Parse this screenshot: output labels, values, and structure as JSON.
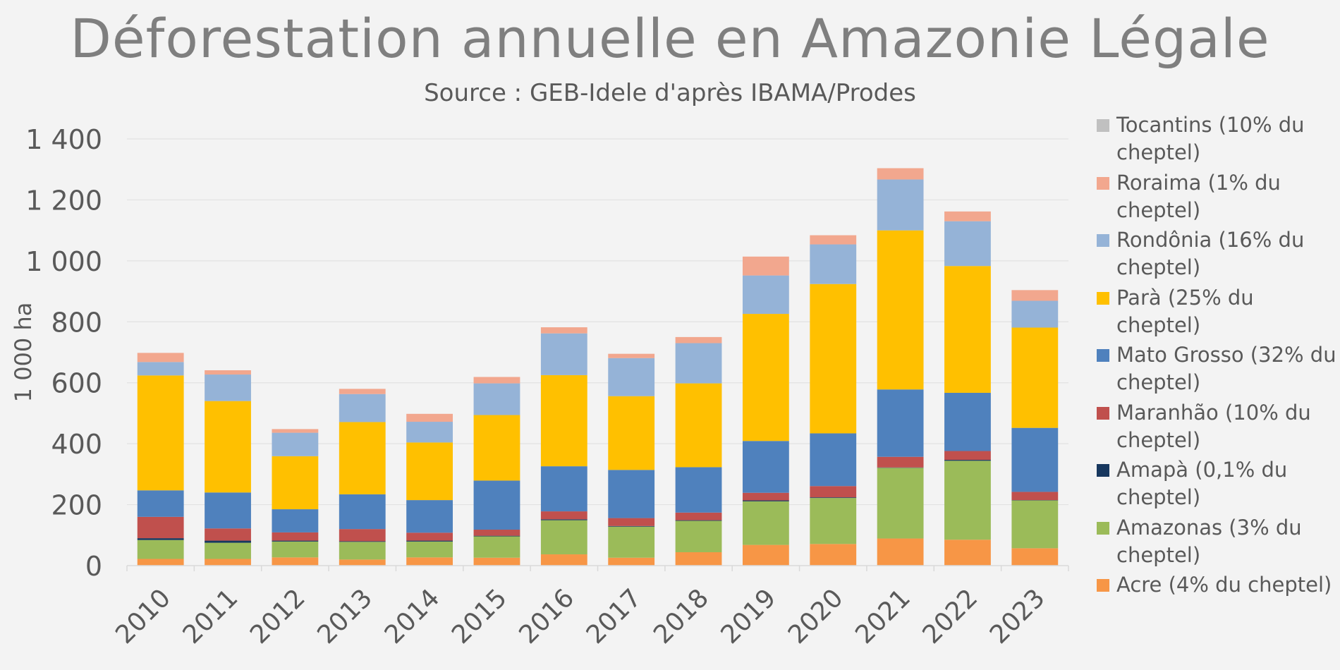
{
  "chart_data": {
    "type": "bar",
    "stacked": true,
    "title": "Déforestation annuelle en Amazonie Légale",
    "subtitle": "Source : GEB-Idele d'après IBAMA/Prodes",
    "xlabel": "",
    "ylabel": "1 000 ha",
    "ylim": [
      0,
      1400
    ],
    "yticks": [
      0,
      200,
      400,
      600,
      800,
      1000,
      1200,
      1400
    ],
    "ytick_labels": [
      "0",
      "200",
      "400",
      "600",
      "800",
      "1 000",
      "1 200",
      "1 400"
    ],
    "grid": true,
    "legend_position": "right",
    "categories": [
      "2010",
      "2011",
      "2012",
      "2013",
      "2014",
      "2015",
      "2016",
      "2017",
      "2018",
      "2019",
      "2020",
      "2021",
      "2022",
      "2023"
    ],
    "series": [
      {
        "name": "Acre (4% du cheptel)",
        "color": "#f79646",
        "values": [
          22,
          22,
          27,
          20,
          27,
          26,
          37,
          26,
          44,
          68,
          71,
          89,
          85,
          57
        ]
      },
      {
        "name": "Amazonas (3% du cheptel)",
        "color": "#9bbb59",
        "values": [
          62,
          53,
          52,
          58,
          52,
          70,
          112,
          102,
          103,
          143,
          151,
          232,
          259,
          157
        ]
      },
      {
        "name": "Amapà (0,1% du cheptel)",
        "color": "#17375e",
        "values": [
          6,
          7,
          3,
          2,
          3,
          2,
          3,
          2,
          2,
          3,
          2,
          1,
          3,
          1
        ]
      },
      {
        "name": "Maranhão (10% du cheptel)",
        "color": "#c0504d",
        "values": [
          70,
          40,
          27,
          40,
          26,
          20,
          26,
          26,
          25,
          25,
          37,
          35,
          29,
          27
        ]
      },
      {
        "name": "Mato Grosso (32% du cheptel)",
        "color": "#4f81bd",
        "values": [
          87,
          118,
          76,
          114,
          107,
          161,
          148,
          158,
          149,
          170,
          173,
          221,
          191,
          210
        ]
      },
      {
        "name": "Parà (25% du cheptel)",
        "color": "#ffc000",
        "values": [
          377,
          300,
          174,
          237,
          189,
          215,
          299,
          242,
          275,
          417,
          490,
          522,
          416,
          329
        ]
      },
      {
        "name": "Rondônia (16% du cheptel)",
        "color": "#95b3d7",
        "values": [
          44,
          87,
          77,
          92,
          68,
          104,
          137,
          125,
          132,
          126,
          130,
          167,
          147,
          88
        ]
      },
      {
        "name": "Roraima (1% du cheptel)",
        "color": "#f2a78e",
        "values": [
          30,
          14,
          12,
          17,
          26,
          21,
          20,
          14,
          20,
          62,
          30,
          37,
          32,
          35
        ]
      },
      {
        "name": "Tocantins (10% du cheptel)",
        "color": "#c0c0c0",
        "values": [
          0,
          0,
          0,
          0,
          0,
          0,
          0,
          0,
          0,
          0,
          0,
          0,
          0,
          0
        ]
      }
    ]
  }
}
